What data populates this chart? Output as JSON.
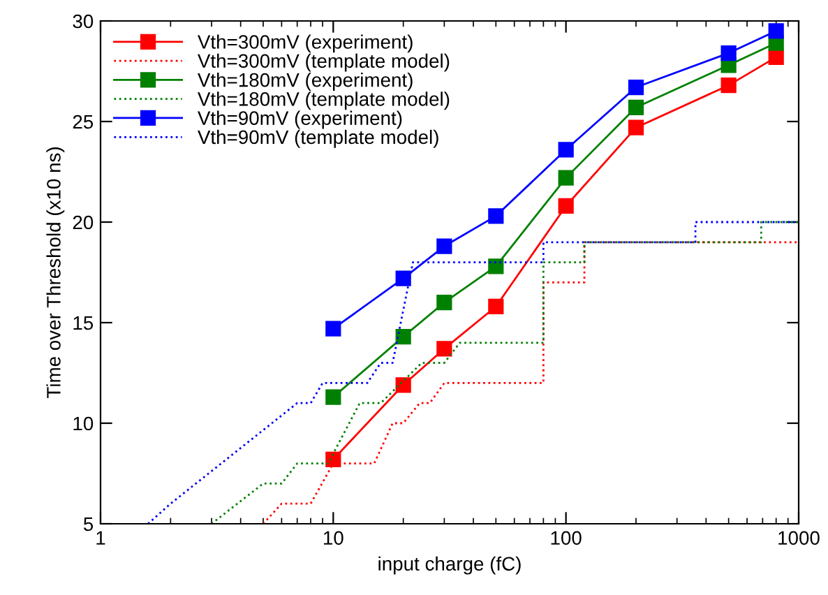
{
  "chart_data": {
    "type": "line",
    "xlabel": "input charge (fC)",
    "ylabel": "Time over Threshold (x10 ns)",
    "log": "x",
    "xlim": [
      1,
      1000
    ],
    "xticks": [
      1,
      10,
      100,
      1000
    ],
    "ylim": [
      5,
      30
    ],
    "yticks": [
      5,
      10,
      15,
      20,
      25,
      30
    ],
    "grid": false,
    "legend": "top left",
    "series": [
      {
        "name": "Vth=300mV (experiment)",
        "color": "#ff0000",
        "marker": "square",
        "line_style": "solid",
        "x": [
          10,
          20,
          30,
          50,
          100,
          200,
          500,
          800
        ],
        "values": [
          8.2,
          11.9,
          13.7,
          15.8,
          20.8,
          24.7,
          26.8,
          28.2
        ]
      },
      {
        "name": "Vth=300mV (template model)",
        "color": "#ff0000",
        "marker": "none",
        "line_style": "dotted",
        "x": [
          5,
          6,
          8,
          10,
          15,
          18,
          20,
          23.5,
          26,
          30,
          80,
          80,
          120,
          120,
          1000
        ],
        "values": [
          5,
          6,
          6,
          8,
          8,
          10,
          10,
          11,
          11,
          12,
          12,
          17,
          17,
          19,
          19
        ]
      },
      {
        "name": "Vth=180mV (experiment)",
        "color": "#008000",
        "marker": "square",
        "line_style": "solid",
        "x": [
          10,
          20,
          30,
          50,
          100,
          200,
          500,
          800
        ],
        "values": [
          11.3,
          14.3,
          16.0,
          17.8,
          22.2,
          25.7,
          27.8,
          28.9
        ]
      },
      {
        "name": "Vth=180mV (template model)",
        "color": "#008000",
        "marker": "none",
        "line_style": "dotted",
        "x": [
          3,
          5,
          6,
          7,
          9.5,
          13,
          16,
          24,
          30,
          35,
          80,
          80,
          120,
          120,
          690,
          690,
          1000
        ],
        "values": [
          5,
          7,
          7,
          8,
          8,
          11,
          11,
          13,
          13,
          14,
          14,
          18,
          18,
          19,
          19,
          20,
          20
        ]
      },
      {
        "name": "Vth=90mV (experiment)",
        "color": "#0000ff",
        "marker": "square",
        "line_style": "solid",
        "x": [
          10,
          20,
          30,
          50,
          100,
          200,
          500,
          800
        ],
        "values": [
          14.7,
          17.2,
          18.8,
          20.3,
          23.6,
          26.7,
          28.4,
          29.5
        ]
      },
      {
        "name": "Vth=90mV (template model)",
        "color": "#0000ff",
        "marker": "none",
        "line_style": "dotted",
        "x": [
          1.6,
          2,
          7,
          8,
          9,
          14,
          16,
          18,
          22,
          80,
          80,
          360,
          360,
          1000
        ],
        "values": [
          5,
          6,
          11,
          11,
          12,
          12,
          13,
          13,
          18,
          18,
          19,
          19,
          20,
          20
        ]
      }
    ]
  }
}
